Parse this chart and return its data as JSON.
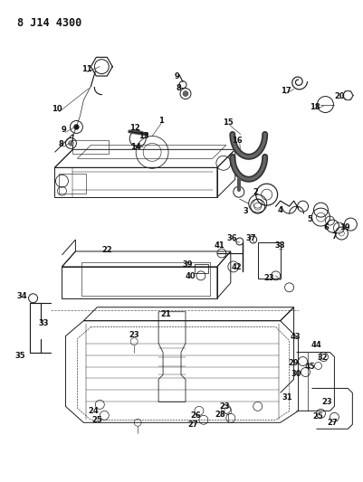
{
  "title": "8 J14 4300",
  "bg_color": "#ffffff",
  "line_color": "#1a1a1a",
  "fig_width": 4.02,
  "fig_height": 5.33,
  "dpi": 100
}
